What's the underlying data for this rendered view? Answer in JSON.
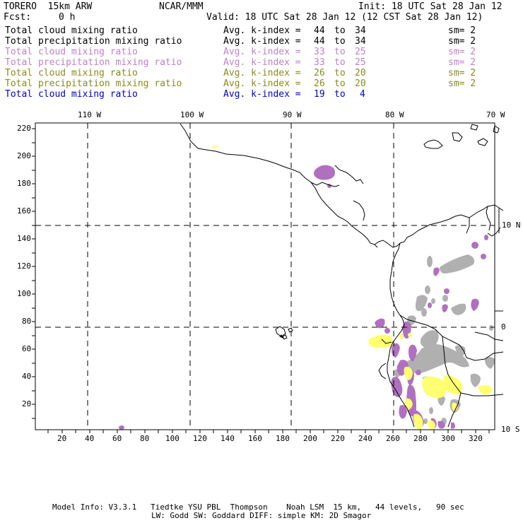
{
  "header": {
    "model": "TORERO  15km ARW",
    "org": "NCAR/MMM",
    "init": "Init: 18 UTC Sat 28 Jan 12",
    "fcst_label": "Fcst:",
    "fcst_value": "0 h",
    "valid": "Valid: 18 UTC Sat 28 Jan 12 (12 CST Sat 28 Jan 12)"
  },
  "fields": [
    {
      "name": "Total cloud mixing ratio",
      "stat": "Avg. k-index =",
      "a": "44",
      "to": "to",
      "b": "34",
      "sm": "sm= 2",
      "color": "#000000"
    },
    {
      "name": "Total precipitation mixing ratio",
      "stat": "Avg. k-index =",
      "a": "44",
      "to": "to",
      "b": "34",
      "sm": "sm= 2",
      "color": "#000000"
    },
    {
      "name": "Total cloud mixing ratio",
      "stat": "Avg. k-index =",
      "a": "33",
      "to": "to",
      "b": "25",
      "sm": "sm= 2",
      "color": "#c080c8"
    },
    {
      "name": "Total precipitation mixing ratio",
      "stat": "Avg. k-index =",
      "a": "33",
      "to": "to",
      "b": "25",
      "sm": "sm= 2",
      "color": "#c080c8"
    },
    {
      "name": "Total cloud mixing ratio",
      "stat": "Avg. k-index =",
      "a": "26",
      "to": "to",
      "b": "20",
      "sm": "sm= 2",
      "color": "#8a8a1a"
    },
    {
      "name": "Total precipitation mixing ratio",
      "stat": "Avg. k-index =",
      "a": "26",
      "to": "to",
      "b": "20",
      "sm": "sm= 2",
      "color": "#8a8a1a"
    },
    {
      "name": "Total cloud mixing ratio",
      "stat": "Avg. k-index =",
      "a": "19",
      "to": "to",
      "b": "4",
      "sm": "",
      "color": "#0000cc"
    }
  ],
  "map": {
    "lon_labels": [
      "110 W",
      "100 W",
      "90 W",
      "80 W",
      "70 W"
    ],
    "lat_labels": [
      "10 N",
      "0",
      "10 S"
    ],
    "y_grid_labels": [
      "220",
      "200",
      "180",
      "160",
      "140",
      "120",
      "100",
      "80",
      "60",
      "40",
      "20"
    ],
    "x_grid_labels": [
      "20",
      "40",
      "60",
      "80",
      "100",
      "120",
      "140",
      "160",
      "180",
      "200",
      "220",
      "240",
      "260",
      "280",
      "300",
      "320"
    ],
    "colors": {
      "gray": "#b0b0b0",
      "purple": "#b070c0",
      "yellow": "#ffff70"
    }
  },
  "footer": {
    "line1": "Model Info: V3.3.1   Tiedtke YSU PBL  Thompson    Noah LSM  15 km,   44 levels,   90 sec",
    "line2": "LW: Godd SW: Goddard DIFF: simple KM: 2D Smagor"
  }
}
